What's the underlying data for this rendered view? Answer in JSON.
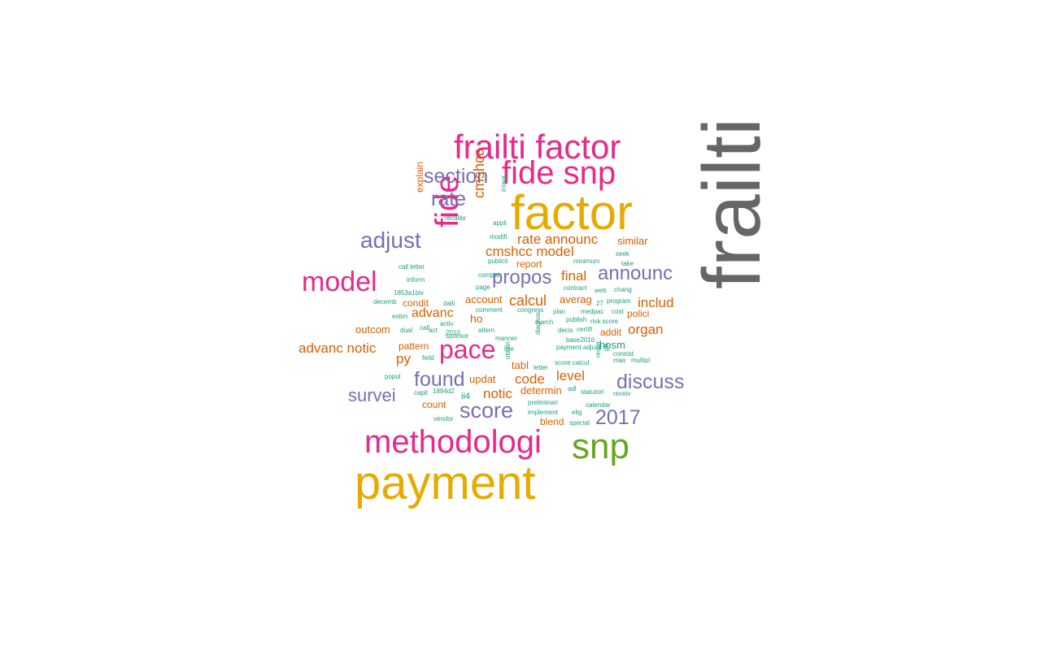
{
  "palette": {
    "grey": "#666666",
    "gold": "#e6ab02",
    "magenta": "#e7298a",
    "purple": "#7570b3",
    "green": "#66a61e",
    "orange": "#d95f02",
    "teal": "#1b9e77"
  },
  "words": [
    {
      "text": "frailti",
      "color": "grey"
    },
    {
      "text": "factor",
      "color": "gold"
    },
    {
      "text": "payment",
      "color": "gold"
    },
    {
      "text": "frailti factor",
      "color": "magenta"
    },
    {
      "text": "fide snp",
      "color": "magenta"
    },
    {
      "text": "methodologi",
      "color": "magenta"
    },
    {
      "text": "snp",
      "color": "green"
    },
    {
      "text": "model",
      "color": "magenta"
    },
    {
      "text": "fide",
      "color": "magenta"
    },
    {
      "text": "pace",
      "color": "magenta"
    },
    {
      "text": "adjust",
      "color": "purple"
    },
    {
      "text": "section",
      "color": "purple"
    },
    {
      "text": "rate",
      "color": "purple"
    },
    {
      "text": "propos",
      "color": "purple"
    },
    {
      "text": "announc",
      "color": "purple"
    },
    {
      "text": "score",
      "color": "purple"
    },
    {
      "text": "found",
      "color": "purple"
    },
    {
      "text": "discuss",
      "color": "purple"
    },
    {
      "text": "survei",
      "color": "purple"
    },
    {
      "text": "2017",
      "color": "purple"
    },
    {
      "text": "cmshcc",
      "color": "orange"
    },
    {
      "text": "rate announc",
      "color": "orange"
    },
    {
      "text": "cmshcc model",
      "color": "orange"
    },
    {
      "text": "final",
      "color": "orange"
    },
    {
      "text": "calcul",
      "color": "orange"
    },
    {
      "text": "includ",
      "color": "orange"
    },
    {
      "text": "advanc",
      "color": "orange"
    },
    {
      "text": "organ",
      "color": "orange"
    },
    {
      "text": "advanc notic",
      "color": "orange"
    },
    {
      "text": "level",
      "color": "orange"
    },
    {
      "text": "code",
      "color": "orange"
    },
    {
      "text": "notic",
      "color": "orange"
    },
    {
      "text": "py",
      "color": "orange"
    },
    {
      "text": "similar",
      "color": "orange"
    },
    {
      "text": "explain",
      "color": "orange"
    },
    {
      "text": "averag",
      "color": "orange"
    },
    {
      "text": "polici",
      "color": "orange"
    },
    {
      "text": "addit",
      "color": "orange"
    },
    {
      "text": "outcom",
      "color": "orange"
    },
    {
      "text": "condit",
      "color": "orange"
    },
    {
      "text": "pattern",
      "color": "orange"
    },
    {
      "text": "account",
      "color": "orange"
    },
    {
      "text": "report",
      "color": "orange"
    },
    {
      "text": "updat",
      "color": "orange"
    },
    {
      "text": "tabl",
      "color": "orange"
    },
    {
      "text": "determin",
      "color": "orange"
    },
    {
      "text": "blend",
      "color": "orange"
    },
    {
      "text": "count",
      "color": "orange"
    },
    {
      "text": "ho",
      "color": "orange"
    },
    {
      "text": "hosm",
      "color": "teal"
    },
    {
      "text": "ii4",
      "color": "teal"
    },
    {
      "text": "integr",
      "color": "teal"
    },
    {
      "text": "recalibr",
      "color": "teal"
    },
    {
      "text": "appli",
      "color": "teal"
    },
    {
      "text": "modifi",
      "color": "teal"
    },
    {
      "text": "seek",
      "color": "teal"
    },
    {
      "text": "take",
      "color": "teal"
    },
    {
      "text": "publicli",
      "color": "teal"
    },
    {
      "text": "minimum",
      "color": "teal"
    },
    {
      "text": "call letter",
      "color": "teal"
    },
    {
      "text": "inform",
      "color": "teal"
    },
    {
      "text": "compar",
      "color": "teal"
    },
    {
      "text": "page",
      "color": "teal"
    },
    {
      "text": "contract",
      "color": "teal"
    },
    {
      "text": "chang",
      "color": "teal"
    },
    {
      "text": "web",
      "color": "teal"
    },
    {
      "text": "program",
      "color": "teal"
    },
    {
      "text": "1853a1biv",
      "color": "teal"
    },
    {
      "text": "decemb",
      "color": "teal"
    },
    {
      "text": "daili",
      "color": "teal"
    },
    {
      "text": "comment",
      "color": "teal"
    },
    {
      "text": "congress",
      "color": "teal"
    },
    {
      "text": "plan",
      "color": "teal"
    },
    {
      "text": "medpac",
      "color": "teal"
    },
    {
      "text": "cost",
      "color": "teal"
    },
    {
      "text": "27",
      "color": "teal"
    },
    {
      "text": "estim",
      "color": "teal"
    },
    {
      "text": "activ",
      "color": "teal"
    },
    {
      "text": "march",
      "color": "teal"
    },
    {
      "text": "publish",
      "color": "teal"
    },
    {
      "text": "risk score",
      "color": "teal"
    },
    {
      "text": "dual",
      "color": "teal"
    },
    {
      "text": "call",
      "color": "teal"
    },
    {
      "text": "act",
      "color": "teal"
    },
    {
      "text": "2010",
      "color": "teal"
    },
    {
      "text": "sponsor",
      "color": "teal"
    },
    {
      "text": "altern",
      "color": "teal"
    },
    {
      "text": "manner",
      "color": "teal"
    },
    {
      "text": "decis",
      "color": "teal"
    },
    {
      "text": "certifi",
      "color": "teal"
    },
    {
      "text": "base2016",
      "color": "teal"
    },
    {
      "text": "payment adjust",
      "color": "teal"
    },
    {
      "text": "consist",
      "color": "teal"
    },
    {
      "text": "multipl",
      "color": "teal"
    },
    {
      "text": "mao",
      "color": "teal"
    },
    {
      "text": "field",
      "color": "teal"
    },
    {
      "text": "live",
      "color": "teal"
    },
    {
      "text": "score calcul",
      "color": "teal"
    },
    {
      "text": "letter",
      "color": "teal"
    },
    {
      "text": "popul",
      "color": "teal"
    },
    {
      "text": "capit",
      "color": "teal"
    },
    {
      "text": "1894d2",
      "color": "teal"
    },
    {
      "text": "statutori",
      "color": "teal"
    },
    {
      "text": "receiv",
      "color": "teal"
    },
    {
      "text": "preliminari",
      "color": "teal"
    },
    {
      "text": "calendar",
      "color": "teal"
    },
    {
      "text": "elig",
      "color": "teal"
    },
    {
      "text": "implement",
      "color": "teal"
    },
    {
      "text": "vendor",
      "color": "teal"
    },
    {
      "text": "special",
      "color": "teal"
    },
    {
      "text": "adl",
      "color": "teal"
    },
    {
      "text": "requir",
      "color": "teal"
    },
    {
      "text": "diagnos",
      "color": "teal"
    },
    {
      "text": "obtain",
      "color": "teal"
    },
    {
      "text": "pb",
      "color": "teal"
    }
  ]
}
